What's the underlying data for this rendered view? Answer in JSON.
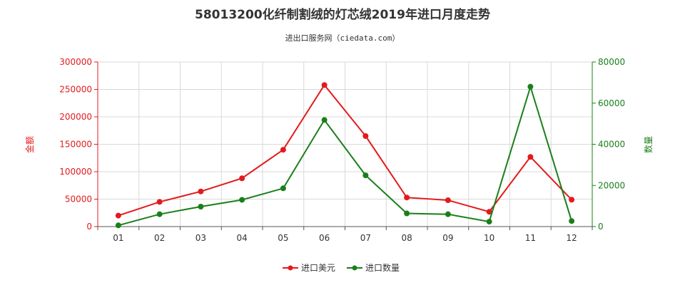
{
  "chart_data": {
    "type": "line",
    "title": "58013200化纤制割绒的灯芯绒2019年进口月度走势",
    "subtitle": "进出口服务网（ciedata.com）",
    "categories": [
      "01",
      "02",
      "03",
      "04",
      "05",
      "06",
      "07",
      "08",
      "09",
      "10",
      "11",
      "12"
    ],
    "left_axis": {
      "label": "金额",
      "min": 0,
      "max": 300000,
      "ticks": [
        "0",
        "50000",
        "100000",
        "150000",
        "200000",
        "250000",
        "300000"
      ]
    },
    "right_axis": {
      "label": "数量",
      "min": 0,
      "max": 80000,
      "ticks": [
        "0",
        "20000",
        "40000",
        "60000",
        "80000"
      ]
    },
    "series": [
      {
        "name": "进口美元",
        "axis": "left",
        "color": "#e31a1c",
        "values": [
          20000,
          45000,
          64000,
          88000,
          140000,
          258000,
          165000,
          53000,
          48000,
          27000,
          127000,
          49000
        ]
      },
      {
        "name": "进口数量",
        "axis": "right",
        "color": "#1a7f1a",
        "values": [
          600,
          6000,
          9700,
          13000,
          18600,
          51800,
          24900,
          6400,
          6000,
          2400,
          68000,
          2700
        ]
      }
    ],
    "grid": true,
    "legend_position": "bottom"
  }
}
